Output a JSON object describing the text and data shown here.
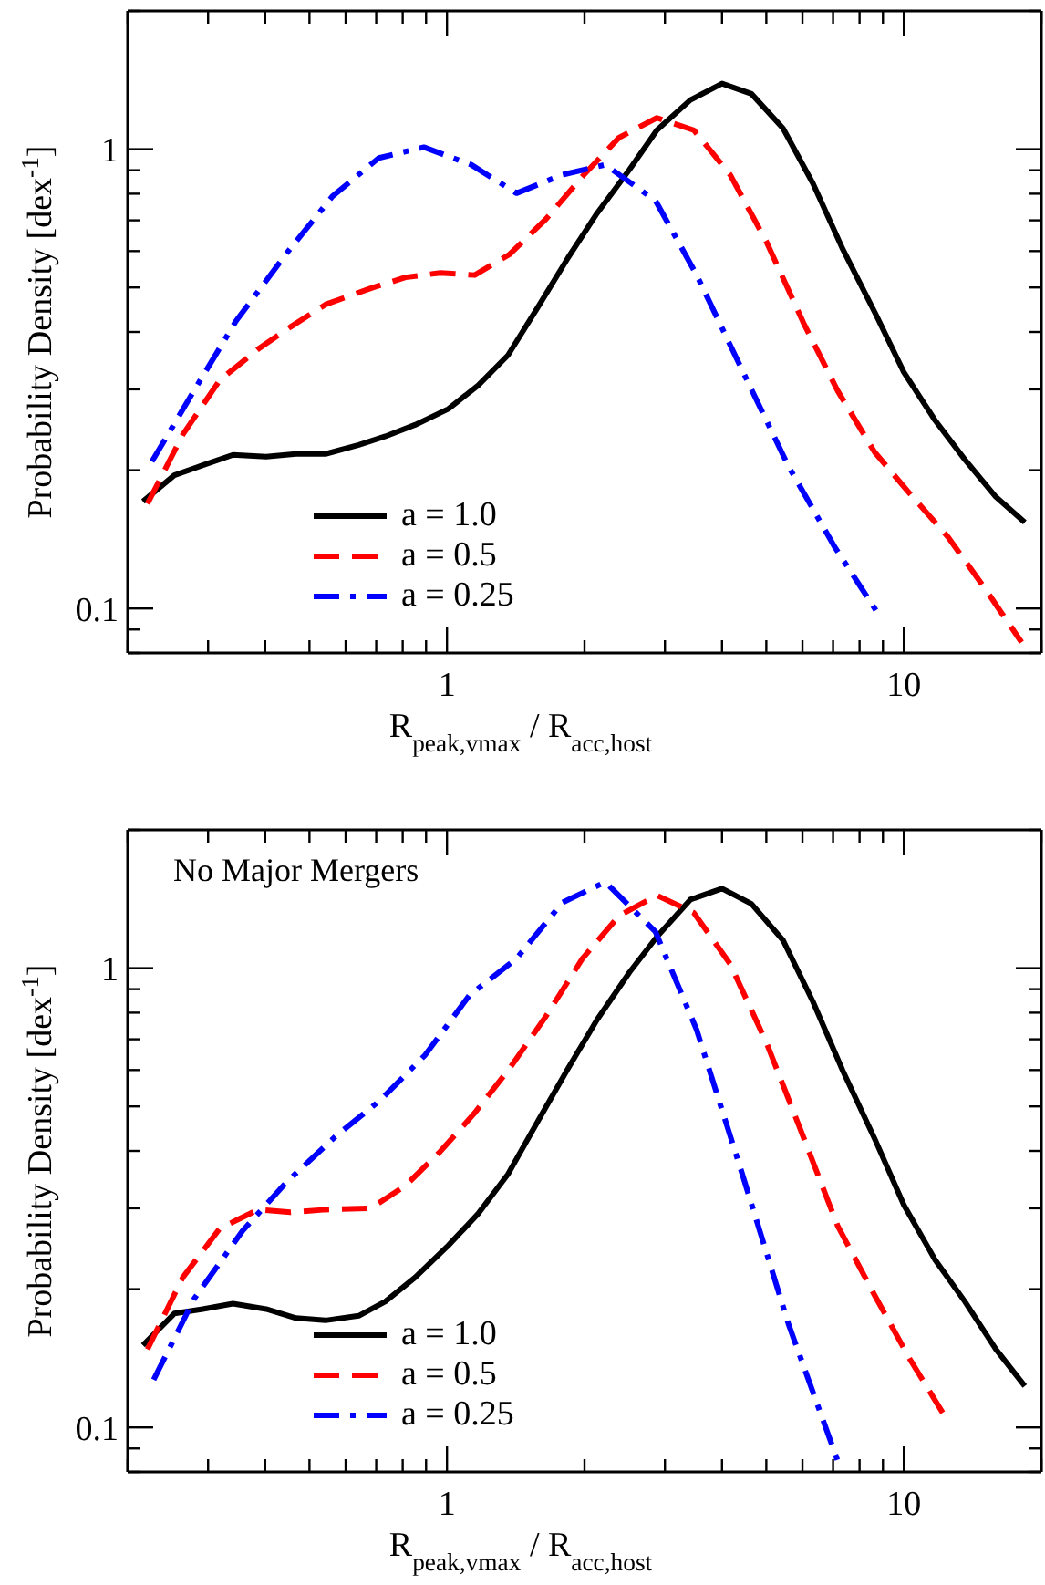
{
  "chart_data": [
    {
      "type": "line",
      "xlabel": "R$_{peak,vmax}$ / R$_{acc,host}$",
      "ylabel": "Probability Density [dex$^{-1}$]",
      "log": "xy",
      "xlim": [
        0.2,
        20
      ],
      "ylim": [
        0.08,
        2
      ],
      "xticks": [
        {
          "value": 0.2,
          "label": null
        },
        {
          "value": 0.3,
          "label": null
        },
        {
          "value": 0.4,
          "label": null
        },
        {
          "value": 0.5,
          "label": null
        },
        {
          "value": 0.6,
          "label": null
        },
        {
          "value": 0.7,
          "label": null
        },
        {
          "value": 0.8,
          "label": null
        },
        {
          "value": 0.9,
          "label": null
        },
        {
          "value": 1,
          "label": "1"
        },
        {
          "value": 2,
          "label": null
        },
        {
          "value": 3,
          "label": null
        },
        {
          "value": 4,
          "label": null
        },
        {
          "value": 5,
          "label": null
        },
        {
          "value": 6,
          "label": null
        },
        {
          "value": 7,
          "label": null
        },
        {
          "value": 8,
          "label": null
        },
        {
          "value": 9,
          "label": null
        },
        {
          "value": 10,
          "label": "10"
        },
        {
          "value": 20,
          "label": null
        }
      ],
      "yticks": [
        {
          "value": 0.08,
          "label": null
        },
        {
          "value": 0.09,
          "label": null
        },
        {
          "value": 0.1,
          "label": "0.1"
        },
        {
          "value": 0.2,
          "label": null
        },
        {
          "value": 0.3,
          "label": null
        },
        {
          "value": 0.4,
          "label": null
        },
        {
          "value": 0.5,
          "label": null
        },
        {
          "value": 0.6,
          "label": null
        },
        {
          "value": 0.7,
          "label": null
        },
        {
          "value": 0.8,
          "label": null
        },
        {
          "value": 0.9,
          "label": null
        },
        {
          "value": 1,
          "label": "1"
        },
        {
          "value": 2,
          "label": null
        }
      ],
      "legend": "bottom",
      "grid": false,
      "marker": "none",
      "series": [
        {
          "name": "a = 1.0",
          "color": "#000000",
          "line_style": "solid",
          "x": [
            0.216,
            0.253,
            0.292,
            0.34,
            0.402,
            0.467,
            0.542,
            0.641,
            0.733,
            0.851,
            1.007,
            1.17,
            1.36,
            1.59,
            1.84,
            2.13,
            2.51,
            2.88,
            3.41,
            4.0,
            4.64,
            5.44,
            6.33,
            7.35,
            8.69,
            10.0,
            11.7,
            13.6,
            15.9,
            18.4
          ],
          "values": [
            0.171,
            0.195,
            0.205,
            0.216,
            0.214,
            0.217,
            0.217,
            0.227,
            0.237,
            0.251,
            0.272,
            0.306,
            0.356,
            0.457,
            0.58,
            0.725,
            0.904,
            1.1,
            1.28,
            1.39,
            1.32,
            1.11,
            0.841,
            0.606,
            0.436,
            0.327,
            0.257,
            0.211,
            0.175,
            0.154
          ]
        },
        {
          "name": "a = 0.5",
          "color": "#ff0000",
          "line_style": "dashed",
          "x": [
            0.221,
            0.264,
            0.318,
            0.386,
            0.454,
            0.542,
            0.681,
            0.811,
            0.967,
            1.15,
            1.37,
            1.65,
            1.98,
            2.38,
            2.88,
            3.47,
            4.17,
            5.01,
            6.02,
            7.16,
            8.63,
            10.3,
            12.5,
            15.1,
            18.1
          ],
          "values": [
            0.169,
            0.239,
            0.314,
            0.367,
            0.41,
            0.459,
            0.498,
            0.526,
            0.538,
            0.532,
            0.59,
            0.706,
            0.873,
            1.06,
            1.17,
            1.1,
            0.879,
            0.627,
            0.42,
            0.298,
            0.219,
            0.178,
            0.143,
            0.11,
            0.0844
          ]
        },
        {
          "name": "a = 0.25",
          "color": "#0000ff",
          "line_style": "dashdot",
          "x": [
            0.226,
            0.28,
            0.345,
            0.447,
            0.561,
            0.709,
            0.89,
            1.13,
            1.42,
            1.79,
            2.22,
            2.86,
            3.52,
            4.43,
            5.59,
            7.06,
            8.93
          ],
          "values": [
            0.209,
            0.299,
            0.422,
            0.596,
            0.789,
            0.957,
            1.01,
            0.925,
            0.802,
            0.88,
            0.925,
            0.773,
            0.532,
            0.33,
            0.204,
            0.136,
            0.095
          ]
        }
      ]
    },
    {
      "type": "line",
      "xlabel": "R$_{peak,vmax}$ / R$_{acc,host}$",
      "ylabel": "Probability Density [dex$^{-1}$]",
      "annotations": [
        "No Major Mergers"
      ],
      "log": "xy",
      "xlim": [
        0.2,
        20
      ],
      "ylim": [
        0.08,
        2
      ],
      "xticks": [
        {
          "value": 0.2,
          "label": null
        },
        {
          "value": 0.3,
          "label": null
        },
        {
          "value": 0.4,
          "label": null
        },
        {
          "value": 0.5,
          "label": null
        },
        {
          "value": 0.6,
          "label": null
        },
        {
          "value": 0.7,
          "label": null
        },
        {
          "value": 0.8,
          "label": null
        },
        {
          "value": 0.9,
          "label": null
        },
        {
          "value": 1,
          "label": "1"
        },
        {
          "value": 2,
          "label": null
        },
        {
          "value": 3,
          "label": null
        },
        {
          "value": 4,
          "label": null
        },
        {
          "value": 5,
          "label": null
        },
        {
          "value": 6,
          "label": null
        },
        {
          "value": 7,
          "label": null
        },
        {
          "value": 8,
          "label": null
        },
        {
          "value": 9,
          "label": null
        },
        {
          "value": 10,
          "label": "10"
        },
        {
          "value": 20,
          "label": null
        }
      ],
      "yticks": [
        {
          "value": 0.08,
          "label": null
        },
        {
          "value": 0.09,
          "label": null
        },
        {
          "value": 0.1,
          "label": "0.1"
        },
        {
          "value": 0.2,
          "label": null
        },
        {
          "value": 0.3,
          "label": null
        },
        {
          "value": 0.4,
          "label": null
        },
        {
          "value": 0.5,
          "label": null
        },
        {
          "value": 0.6,
          "label": null
        },
        {
          "value": 0.7,
          "label": null
        },
        {
          "value": 0.8,
          "label": null
        },
        {
          "value": 0.9,
          "label": null
        },
        {
          "value": 1,
          "label": "1"
        },
        {
          "value": 2,
          "label": null
        }
      ],
      "legend": "bottom",
      "grid": false,
      "marker": "none",
      "series": [
        {
          "name": "a = 1.0",
          "color": "#000000",
          "line_style": "solid",
          "x": [
            0.216,
            0.253,
            0.292,
            0.34,
            0.402,
            0.467,
            0.542,
            0.641,
            0.733,
            0.851,
            1.007,
            1.17,
            1.36,
            1.59,
            1.84,
            2.13,
            2.51,
            2.88,
            3.41,
            4.0,
            4.64,
            5.44,
            6.33,
            7.35,
            8.69,
            10.0,
            11.7,
            13.6,
            15.9,
            18.4
          ],
          "values": [
            0.151,
            0.177,
            0.181,
            0.186,
            0.181,
            0.173,
            0.171,
            0.175,
            0.188,
            0.212,
            0.249,
            0.292,
            0.356,
            0.469,
            0.604,
            0.772,
            0.98,
            1.17,
            1.41,
            1.49,
            1.38,
            1.15,
            0.844,
            0.598,
            0.419,
            0.305,
            0.232,
            0.188,
            0.148,
            0.123
          ]
        },
        {
          "name": "a = 0.5",
          "color": "#ff0000",
          "line_style": "dashed",
          "x": [
            0.221,
            0.264,
            0.318,
            0.386,
            0.454,
            0.542,
            0.681,
            0.811,
            0.967,
            1.15,
            1.37,
            1.65,
            1.98,
            2.38,
            2.88,
            3.47,
            4.17,
            5.01,
            6.02,
            7.16,
            8.63,
            10.3,
            12.5
          ],
          "values": [
            0.148,
            0.212,
            0.271,
            0.298,
            0.294,
            0.298,
            0.3,
            0.336,
            0.399,
            0.484,
            0.604,
            0.788,
            1.05,
            1.3,
            1.44,
            1.32,
            1.02,
            0.686,
            0.43,
            0.275,
            0.194,
            0.141,
            0.103
          ]
        },
        {
          "name": "a = 0.25",
          "color": "#0000ff",
          "line_style": "dashdot",
          "x": [
            0.228,
            0.28,
            0.357,
            0.444,
            0.57,
            0.713,
            0.896,
            1.12,
            1.42,
            1.79,
            2.22,
            2.86,
            3.52,
            4.43,
            5.59,
            7.16
          ],
          "values": [
            0.127,
            0.191,
            0.268,
            0.341,
            0.43,
            0.515,
            0.647,
            0.873,
            1.05,
            1.39,
            1.54,
            1.2,
            0.734,
            0.356,
            0.168,
            0.0847
          ]
        }
      ]
    }
  ]
}
